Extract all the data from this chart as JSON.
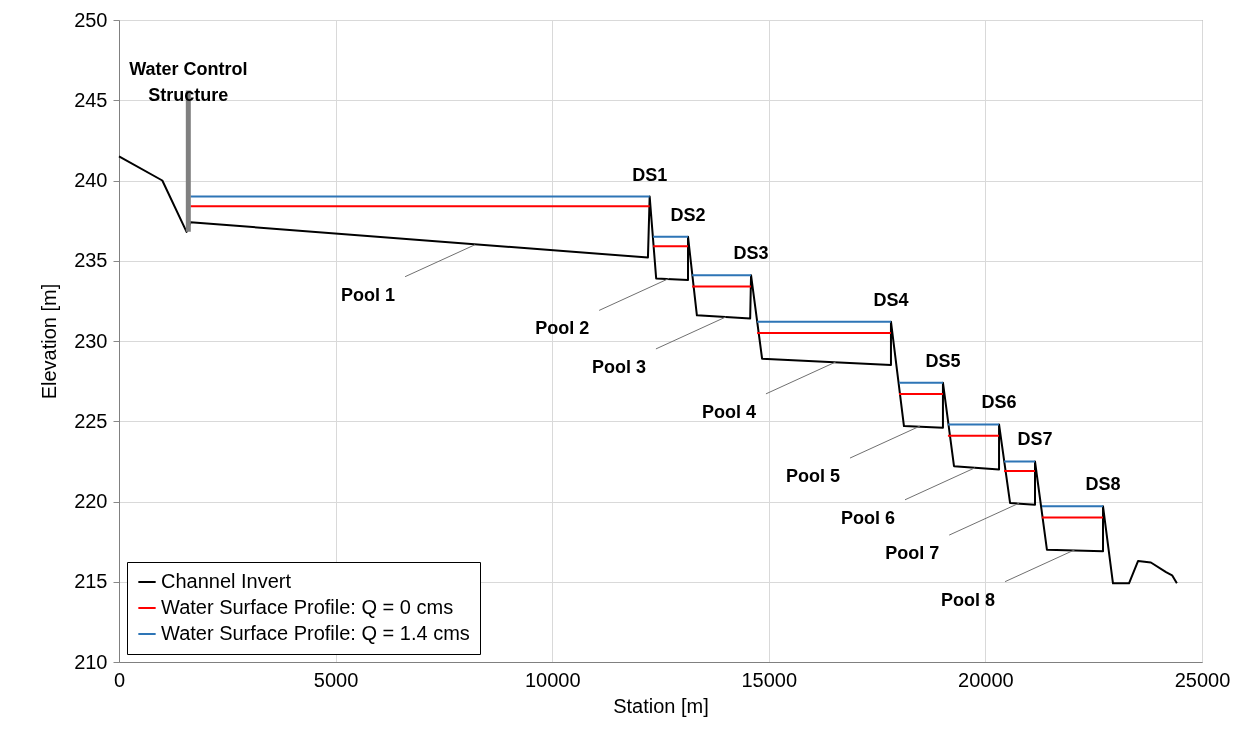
{
  "chart_data": {
    "type": "line",
    "xlabel": "Station [m]",
    "ylabel": "Elevation [m]",
    "xlim": [
      0,
      25000
    ],
    "xticks": [
      0,
      5000,
      10000,
      15000,
      20000,
      25000
    ],
    "ylim": [
      210,
      250
    ],
    "yticks": [
      210,
      215,
      220,
      225,
      230,
      235,
      240,
      245,
      250
    ],
    "grid": true,
    "legend": "bottom left",
    "line_style": "solid",
    "series": [
      {
        "name": "Channel Invert",
        "color": "#000000",
        "x": [
          0,
          1000,
          1560,
          1650,
          12210,
          12250,
          12400,
          13135,
          13135,
          13340,
          14570,
          14590,
          14845,
          17820,
          17820,
          18120,
          19020,
          19020,
          19275,
          20315,
          20315,
          20570,
          21145,
          21145,
          21420,
          22715,
          22715,
          22945,
          23315,
          23525,
          23820,
          24170,
          24310,
          24420
        ],
        "values": [
          241.5,
          240.0,
          236.8,
          237.4,
          235.2,
          239.0,
          233.9,
          233.8,
          236.5,
          231.6,
          231.4,
          234.1,
          228.9,
          228.5,
          231.2,
          224.7,
          224.6,
          227.4,
          222.2,
          222.0,
          224.8,
          219.9,
          219.8,
          222.5,
          217.0,
          216.9,
          219.7,
          214.9,
          214.9,
          216.3,
          216.2,
          215.6,
          215.4,
          214.9
        ]
      },
      {
        "name": "Water Surface Profile: Q = 0 cms",
        "color": "#ff0000",
        "x": [
          1650,
          12250,
          12290,
          12330,
          13135,
          13180,
          13230,
          14590,
          14660,
          14730,
          17820,
          17910,
          18005,
          19020,
          19080,
          19135,
          20315,
          20370,
          20430,
          21145,
          21220,
          21305,
          22715
        ],
        "values": [
          238.4,
          238.4,
          null,
          235.9,
          235.9,
          null,
          233.4,
          233.4,
          null,
          230.5,
          230.5,
          null,
          226.7,
          226.7,
          null,
          224.1,
          224.1,
          null,
          221.9,
          221.9,
          null,
          219.0,
          219.0
        ]
      },
      {
        "name": "Water Surface Profile: Q = 1.4 cms",
        "color": "#2e75b6",
        "x": [
          1650,
          12250,
          12290,
          12330,
          13135,
          13180,
          13230,
          14590,
          14660,
          14730,
          17820,
          17910,
          18005,
          19020,
          19080,
          19135,
          20315,
          20370,
          20430,
          21145,
          21220,
          21305,
          22715
        ],
        "values": [
          239.0,
          239.0,
          null,
          236.5,
          236.5,
          null,
          234.1,
          234.1,
          null,
          231.2,
          231.2,
          null,
          227.4,
          227.4,
          null,
          224.8,
          224.8,
          null,
          222.5,
          222.5,
          null,
          219.7,
          219.7
        ]
      },
      {
        "color": "#808080",
        "x": [
          1600,
          1600
        ],
        "values": [
          236.8,
          245.6
        ]
      }
    ],
    "annotations": [
      {
        "text": "Water Control\nStructure",
        "x": 1600,
        "y": 245.6
      },
      {
        "text": "DS1",
        "x": 12250,
        "y": 239.0
      },
      {
        "text": "DS2",
        "x": 13135,
        "y": 236.5
      },
      {
        "text": "DS3",
        "x": 14590,
        "y": 234.1
      },
      {
        "text": "DS4",
        "x": 17820,
        "y": 231.2
      },
      {
        "text": "DS5",
        "x": 19020,
        "y": 227.4
      },
      {
        "text": "DS6",
        "x": 20315,
        "y": 224.8
      },
      {
        "text": "DS7",
        "x": 21145,
        "y": 222.5
      },
      {
        "text": "DS8",
        "x": 22715,
        "y": 219.7
      },
      {
        "text": "Pool 1",
        "x": 8220,
        "y": 236.0
      },
      {
        "text": "Pool 2",
        "x": 12700,
        "y": 233.9
      },
      {
        "text": "Pool 3",
        "x": 14010,
        "y": 231.5
      },
      {
        "text": "Pool 4",
        "x": 16550,
        "y": 228.7
      },
      {
        "text": "Pool 5",
        "x": 18490,
        "y": 224.7
      },
      {
        "text": "Pool 6",
        "x": 19760,
        "y": 222.1
      },
      {
        "text": "Pool 7",
        "x": 20780,
        "y": 219.9
      },
      {
        "text": "Pool 8",
        "x": 22070,
        "y": 217.0
      }
    ]
  }
}
